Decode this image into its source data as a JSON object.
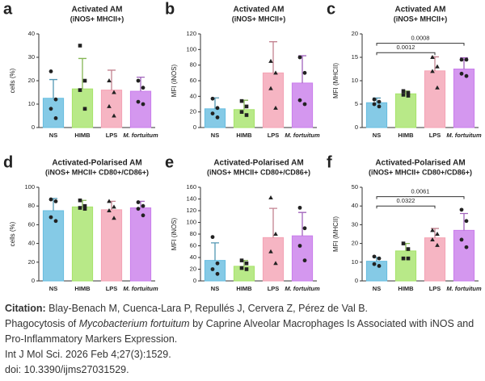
{
  "chart_data": [
    {
      "type": "bar",
      "label": "a",
      "title": "Activated AM",
      "subtitle": "(iNOS+ MHCII+)",
      "ylabel": "cells (%)",
      "categories": [
        "NS",
        "HIMB",
        "LPS",
        "M. fortuitum"
      ],
      "values": [
        12.5,
        16.5,
        16,
        15.5
      ],
      "errors": [
        8,
        13,
        8.5,
        6
      ],
      "points": [
        [
          24,
          12,
          8,
          4
        ],
        [
          35,
          20,
          16,
          8
        ],
        [
          20,
          15,
          9,
          5
        ],
        [
          20,
          17,
          11,
          10
        ]
      ],
      "colors": [
        "#67bde0",
        "#a6e36a",
        "#f4a3b4",
        "#c97deb"
      ],
      "markers": [
        "circle",
        "square",
        "triangle",
        "circle"
      ],
      "ylim": [
        0,
        40
      ],
      "yticks": [
        0,
        10,
        20,
        30,
        40
      ],
      "significance": []
    },
    {
      "type": "bar",
      "label": "b",
      "title": "Activated AM",
      "subtitle": "(iNOS+ MHCII+)",
      "ylabel": "MFI (iNOS)",
      "categories": [
        "NS",
        "HIMB",
        "LPS",
        "M. fortuitum"
      ],
      "values": [
        24,
        23,
        70,
        57
      ],
      "errors": [
        14,
        12,
        40,
        35
      ],
      "points": [
        [
          37,
          25,
          18,
          13
        ],
        [
          34,
          27,
          20,
          16
        ],
        [
          85,
          70,
          50,
          25
        ],
        [
          90,
          70,
          35,
          30
        ]
      ],
      "colors": [
        "#67bde0",
        "#a6e36a",
        "#f4a3b4",
        "#c97deb"
      ],
      "markers": [
        "circle",
        "square",
        "triangle",
        "circle"
      ],
      "ylim": [
        0,
        120
      ],
      "yticks": [
        0,
        20,
        40,
        60,
        80,
        100,
        120
      ],
      "significance": []
    },
    {
      "type": "bar",
      "label": "c",
      "title": "Activated AM",
      "subtitle": "(iNOS+ MHCII+)",
      "ylabel": "MFI (MHCII)",
      "categories": [
        "NS",
        "HIMB",
        "LPS",
        "M. fortuitum"
      ],
      "values": [
        5.3,
        7.2,
        12.1,
        12.5
      ],
      "errors": [
        1,
        0.6,
        3,
        2.4
      ],
      "points": [
        [
          6,
          5.5,
          5,
          4.5
        ],
        [
          7.8,
          7.4,
          7,
          6.8
        ],
        [
          15,
          13,
          12,
          8.5
        ],
        [
          14.5,
          14.5,
          11.5,
          11
        ]
      ],
      "colors": [
        "#67bde0",
        "#a6e36a",
        "#f4a3b4",
        "#c97deb"
      ],
      "markers": [
        "circle",
        "square",
        "triangle",
        "circle"
      ],
      "ylim": [
        0,
        20
      ],
      "yticks": [
        0,
        5,
        10,
        15,
        20
      ],
      "significance": [
        {
          "pair": [
            "NS",
            "LPS"
          ],
          "label": "0.0012"
        },
        {
          "pair": [
            "NS",
            "M. fortuitum"
          ],
          "label": "0.0008"
        }
      ]
    },
    {
      "type": "bar",
      "label": "d",
      "title": "Activated-Polarised AM",
      "subtitle": "(iNOS+ MHCII+ CD80+/CD86+)",
      "ylabel": "cells (%)",
      "categories": [
        "NS",
        "HIMB",
        "LPS",
        "M. fortuitum"
      ],
      "values": [
        75,
        79,
        76,
        78
      ],
      "errors": [
        13,
        7,
        9,
        7
      ],
      "points": [
        [
          87,
          85,
          68,
          64
        ],
        [
          86,
          80,
          78,
          77
        ],
        [
          85,
          79,
          75,
          67
        ],
        [
          84,
          80,
          77,
          70
        ]
      ],
      "colors": [
        "#67bde0",
        "#a6e36a",
        "#f4a3b4",
        "#c97deb"
      ],
      "markers": [
        "circle",
        "square",
        "triangle",
        "circle"
      ],
      "ylim": [
        0,
        100
      ],
      "yticks": [
        0,
        20,
        40,
        60,
        80,
        100
      ],
      "significance": []
    },
    {
      "type": "bar",
      "label": "e",
      "title": "Activated-Polarised AM",
      "subtitle": "(iNOS+ MHCII+ CD80+/CD86+)",
      "ylabel": "MFI (iNOS)",
      "categories": [
        "NS",
        "HIMB",
        "LPS",
        "M. fortuitum"
      ],
      "values": [
        35,
        25,
        74,
        77
      ],
      "errors": [
        30,
        10,
        50,
        40
      ],
      "points": [
        [
          75,
          30,
          20,
          12
        ],
        [
          35,
          30,
          22,
          20
        ],
        [
          142,
          80,
          50,
          30
        ],
        [
          125,
          90,
          60,
          35
        ]
      ],
      "colors": [
        "#67bde0",
        "#a6e36a",
        "#f4a3b4",
        "#c97deb"
      ],
      "markers": [
        "circle",
        "square",
        "triangle",
        "circle"
      ],
      "ylim": [
        0,
        160
      ],
      "yticks": [
        0,
        20,
        40,
        60,
        80,
        100,
        120,
        140,
        160
      ],
      "significance": []
    },
    {
      "type": "bar",
      "label": "f",
      "title": "Activated-Polarised AM",
      "subtitle": "(iNOS+ MHCII+ CD80+/CD86+)",
      "ylabel": "MFI (MHCII)",
      "categories": [
        "NS",
        "HIMB",
        "LPS",
        "M. fortuitum"
      ],
      "values": [
        10.5,
        16,
        23,
        27
      ],
      "errors": [
        2,
        4,
        5,
        9
      ],
      "points": [
        [
          13,
          12,
          9,
          8
        ],
        [
          20,
          17,
          12,
          12
        ],
        [
          27,
          25,
          22,
          19
        ],
        [
          38,
          32,
          22,
          18
        ]
      ],
      "colors": [
        "#67bde0",
        "#a6e36a",
        "#f4a3b4",
        "#c97deb"
      ],
      "markers": [
        "circle",
        "square",
        "triangle",
        "circle"
      ],
      "ylim": [
        0,
        50
      ],
      "yticks": [
        0,
        10,
        20,
        30,
        40,
        50
      ],
      "significance": [
        {
          "pair": [
            "NS",
            "LPS"
          ],
          "label": "0.0322"
        },
        {
          "pair": [
            "NS",
            "M. fortuitum"
          ],
          "label": "0.0061"
        }
      ]
    }
  ],
  "citation": {
    "label": "Citation:",
    "authors": "Blay-Benach M, Cuenca-Lara P, Repullés J, Cervera Z, Pérez de Val B.",
    "title_parts": [
      "Phagocytosis of",
      "Mycobacterium fortuitum",
      "by Caprine Alveolar Macrophages Is Associated with iNOS and"
    ],
    "title_end": "Pro-Inflammatory Markers Expression.",
    "journal": "Int J Mol Sci. 2026 Feb 4;27(3):1529.",
    "doi": "doi: 10.3390/ijms27031529."
  }
}
